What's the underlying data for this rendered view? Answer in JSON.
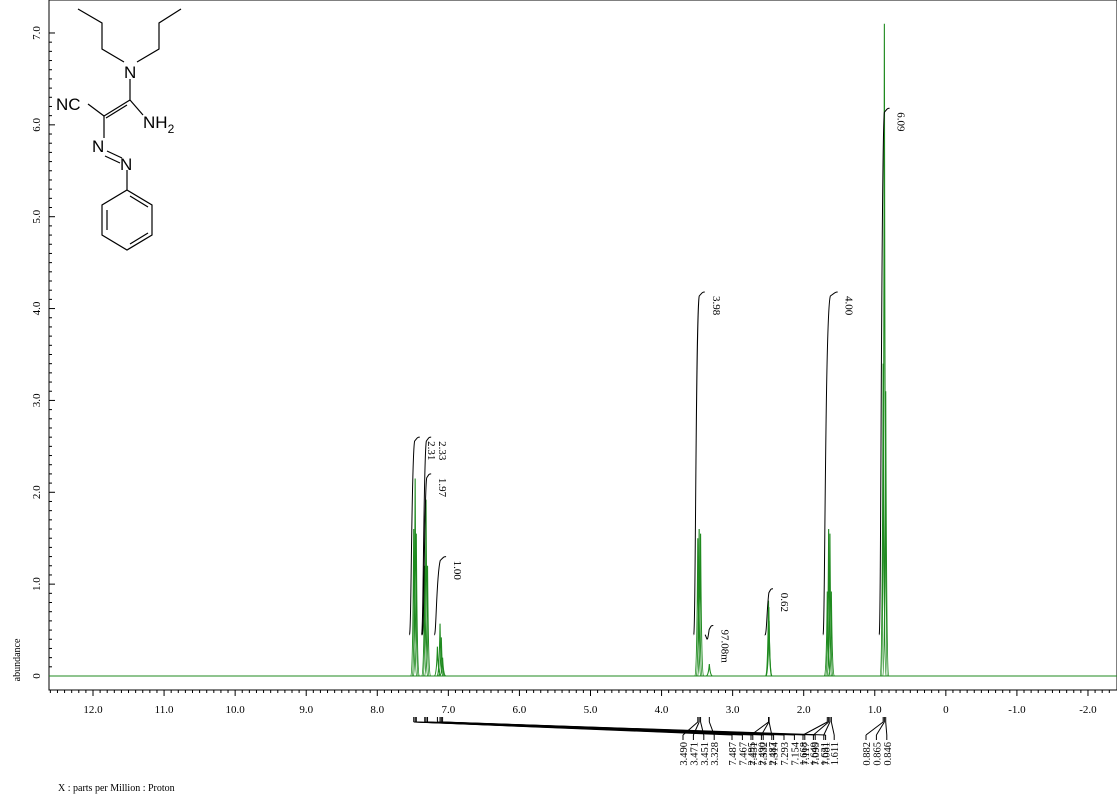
{
  "colors": {
    "spectrum": "#1f8a1f",
    "axis": "#000000",
    "background": "#ffffff"
  },
  "chart_data": {
    "type": "line",
    "title": "",
    "xlabel": "X : parts per Million : Proton",
    "ylabel": "abundance",
    "x_reversed": true,
    "xlim": [
      12.6,
      -2.3
    ],
    "ylim": [
      -0.15,
      7.3
    ],
    "x_ticks": [
      "12.0",
      "11.0",
      "10.0",
      "9.0",
      "8.0",
      "7.0",
      "6.0",
      "5.0",
      "4.0",
      "3.0",
      "2.0",
      "1.0",
      "0",
      "-1.0",
      "-2.0"
    ],
    "x_tick_values": [
      12,
      11,
      10,
      9,
      8,
      7,
      6,
      5,
      4,
      3,
      2,
      1,
      0,
      -1,
      -2
    ],
    "y_ticks": [
      "0",
      "1.0",
      "2.0",
      "3.0",
      "4.0",
      "5.0",
      "6.0",
      "7.0"
    ],
    "y_tick_values": [
      0,
      1,
      2,
      3,
      4,
      5,
      6,
      7
    ],
    "grid": false,
    "peaks": [
      {
        "ppm": 7.487,
        "height": 1.6
      },
      {
        "ppm": 7.467,
        "height": 2.15
      },
      {
        "ppm": 7.451,
        "height": 1.55
      },
      {
        "ppm": 7.332,
        "height": 1.2
      },
      {
        "ppm": 7.314,
        "height": 1.92
      },
      {
        "ppm": 7.293,
        "height": 1.2
      },
      {
        "ppm": 7.154,
        "height": 0.32
      },
      {
        "ppm": 7.117,
        "height": 0.57
      },
      {
        "ppm": 7.099,
        "height": 0.42
      },
      {
        "ppm": 7.081,
        "height": 0.2
      },
      {
        "ppm": 3.49,
        "height": 1.5
      },
      {
        "ppm": 3.471,
        "height": 1.6
      },
      {
        "ppm": 3.451,
        "height": 1.55
      },
      {
        "ppm": 3.328,
        "height": 0.13
      },
      {
        "ppm": 2.495,
        "height": 0.82
      },
      {
        "ppm": 2.49,
        "height": 0.75
      },
      {
        "ppm": 2.487,
        "height": 0.6
      },
      {
        "ppm": 1.668,
        "height": 0.92
      },
      {
        "ppm": 1.649,
        "height": 1.6
      },
      {
        "ppm": 1.631,
        "height": 1.55
      },
      {
        "ppm": 1.611,
        "height": 0.92
      },
      {
        "ppm": 0.882,
        "height": 3.4
      },
      {
        "ppm": 0.865,
        "height": 7.1
      },
      {
        "ppm": 0.846,
        "height": 3.1
      }
    ],
    "peak_labels": [
      {
        "label": "7.487",
        "ppm": 7.487
      },
      {
        "label": "7.467",
        "ppm": 7.467
      },
      {
        "label": "7.451",
        "ppm": 7.451
      },
      {
        "label": "7.332",
        "ppm": 7.332
      },
      {
        "label": "7.314",
        "ppm": 7.314
      },
      {
        "label": "7.293",
        "ppm": 7.293
      },
      {
        "label": "7.154",
        "ppm": 7.154
      },
      {
        "label": "7.117",
        "ppm": 7.117
      },
      {
        "label": "7.099",
        "ppm": 7.099
      },
      {
        "label": "7.081",
        "ppm": 7.081
      },
      {
        "label": "3.490",
        "ppm": 3.49
      },
      {
        "label": "3.471",
        "ppm": 3.471
      },
      {
        "label": "3.451",
        "ppm": 3.451
      },
      {
        "label": "3.328",
        "ppm": 3.328
      },
      {
        "label": "2.495",
        "ppm": 2.495
      },
      {
        "label": "2.490",
        "ppm": 2.49
      },
      {
        "label": "2.487",
        "ppm": 2.487
      },
      {
        "label": "1.668",
        "ppm": 1.668
      },
      {
        "label": "1.649",
        "ppm": 1.649
      },
      {
        "label": "1.631",
        "ppm": 1.631
      },
      {
        "label": "1.611",
        "ppm": 1.611
      },
      {
        "label": "0.882",
        "ppm": 0.882
      },
      {
        "label": "0.865",
        "ppm": 0.865
      },
      {
        "label": "0.846",
        "ppm": 0.846
      }
    ],
    "integrals": [
      {
        "label": "2.31",
        "from": 7.52,
        "to": 7.43,
        "top": 2.6
      },
      {
        "label": "2.33",
        "from": 7.35,
        "to": 7.27,
        "top": 2.6
      },
      {
        "label": "1.97",
        "from": 7.34,
        "to": 7.27,
        "top": 2.2
      },
      {
        "label": "1.00",
        "from": 7.17,
        "to": 7.06,
        "top": 1.3
      },
      {
        "label": "3.98",
        "from": 3.52,
        "to": 3.42,
        "top": 4.18
      },
      {
        "label": "97.08m",
        "from": 3.36,
        "to": 3.3,
        "top": 0.55
      },
      {
        "label": "0.62",
        "from": 2.52,
        "to": 2.46,
        "top": 0.95
      },
      {
        "label": "4.00",
        "from": 1.7,
        "to": 1.55,
        "top": 4.18
      },
      {
        "label": "6.09",
        "from": 0.91,
        "to": 0.82,
        "top": 6.18
      }
    ]
  },
  "structure": {
    "labels": {
      "nc": "NC",
      "n_amine": "N",
      "nh2": "NH",
      "nh2_sub": "2",
      "azo_n1": "N",
      "azo_n2": "N"
    }
  }
}
